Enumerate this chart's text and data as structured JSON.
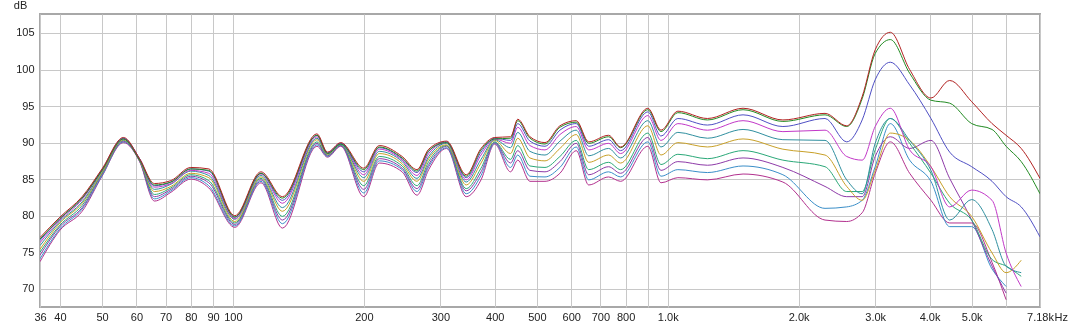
{
  "chart_data": {
    "type": "line",
    "xlabel": "Hz",
    "ylabel": "dB",
    "log": "x",
    "grid": true,
    "xlim": [
      36,
      7180
    ],
    "ylim": [
      67.5,
      107.6
    ],
    "xticks": [
      36,
      40,
      50,
      60,
      70,
      80,
      90,
      100,
      200,
      300,
      400,
      500,
      600,
      700,
      800,
      {
        "value": 900,
        "label": null
      },
      {
        "value": 1000,
        "label": "1.0k"
      },
      {
        "value": 2000,
        "label": "2.0k"
      },
      {
        "value": 3000,
        "label": "3.0k"
      },
      {
        "value": 4000,
        "label": "4.0k"
      },
      {
        "value": 5000,
        "label": "5.0k"
      },
      {
        "value": 6000,
        "label": null
      },
      {
        "value": 7180,
        "label": "7.18k"
      }
    ],
    "yticks": [
      70,
      75,
      80,
      85,
      90,
      95,
      100,
      105
    ],
    "x": [
      36,
      40,
      45,
      50,
      56,
      61,
      66,
      72,
      80,
      88,
      101,
      116,
      130,
      156,
      165,
      177,
      200,
      217,
      245,
      265,
      282,
      310,
      344,
      372,
      400,
      435,
      452,
      482,
      522,
      565,
      616,
      658,
      731,
      779,
      900,
      965,
      1055,
      1234,
      1490,
      1840,
      2300,
      2580,
      2800,
      3000,
      3250,
      3600,
      4030,
      4450,
      5000,
      5570,
      6000,
      6500,
      7180
    ],
    "series": [
      {
        "color": "#b22222",
        "values": [
          77.0,
          79.8,
          82.6,
          86.4,
          90.7,
          87.8,
          84.4,
          84.8,
          86.6,
          86.4,
          80.0,
          86.0,
          82.6,
          91.2,
          88.7,
          90.0,
          86.5,
          89.6,
          88.1,
          86.3,
          89.1,
          90.2,
          85.6,
          89.2,
          90.7,
          90.8,
          93.2,
          90.8,
          90.0,
          92.3,
          93.0,
          90.1,
          91.0,
          89.4,
          94.7,
          91.7,
          94.3,
          93.3,
          94.7,
          93.1,
          94.0,
          92.3,
          96.3,
          102.7,
          105.1,
          100.0,
          96.1,
          98.5,
          95.6,
          92.6,
          91.0,
          89.2,
          85.1
        ]
      },
      {
        "color": "#228b22",
        "values": [
          76.8,
          79.6,
          82.4,
          86.2,
          90.5,
          87.6,
          84.2,
          84.6,
          86.4,
          86.2,
          79.8,
          85.8,
          82.4,
          91.0,
          88.5,
          89.8,
          86.3,
          89.4,
          87.9,
          86.1,
          88.9,
          90.0,
          85.4,
          89.0,
          90.5,
          90.6,
          93.0,
          90.6,
          89.8,
          92.1,
          92.8,
          89.9,
          90.8,
          89.3,
          94.5,
          91.5,
          94.1,
          93.1,
          94.5,
          92.9,
          93.8,
          92.2,
          96.0,
          102.2,
          104.1,
          99.5,
          95.8,
          95.4,
          92.6,
          91.8,
          89.5,
          87.4,
          83.0
        ]
      },
      {
        "color": "#4f4fc4",
        "values": [
          76.6,
          79.6,
          82.4,
          86.3,
          90.6,
          87.8,
          84.1,
          84.6,
          86.4,
          86.1,
          79.8,
          85.8,
          82.1,
          91.0,
          88.6,
          89.9,
          86.0,
          89.3,
          87.8,
          85.9,
          88.8,
          90.1,
          85.2,
          88.7,
          90.6,
          90.3,
          92.6,
          90.2,
          89.5,
          91.7,
          92.6,
          89.5,
          90.4,
          88.9,
          94.2,
          90.9,
          93.3,
          92.4,
          93.8,
          92.2,
          93.3,
          90.1,
          93.1,
          98.6,
          101.0,
          97.9,
          93.3,
          88.7,
          86.7,
          84.7,
          82.6,
          81.2,
          77.1
        ]
      },
      {
        "color": "#c238c8",
        "values": [
          76.3,
          79.4,
          82.2,
          86.2,
          90.5,
          87.7,
          83.9,
          84.4,
          86.2,
          85.8,
          79.6,
          85.7,
          81.7,
          90.8,
          88.5,
          89.9,
          85.6,
          89.1,
          87.6,
          85.5,
          88.5,
          90.0,
          84.9,
          88.3,
          90.5,
          89.9,
          92.1,
          89.6,
          89.0,
          91.1,
          92.2,
          89.0,
          89.9,
          88.5,
          93.7,
          90.3,
          92.6,
          91.7,
          93.0,
          91.5,
          91.7,
          88.1,
          87.6,
          92.2,
          94.7,
          89.0,
          86.7,
          81.2,
          83.5,
          82.1,
          74.9,
          70.3,
          null
        ]
      },
      {
        "color": "#2f8f9f",
        "values": [
          75.9,
          79.2,
          81.9,
          86.1,
          90.5,
          87.7,
          83.6,
          84.3,
          86.1,
          85.5,
          79.5,
          85.5,
          81.1,
          90.6,
          88.5,
          89.8,
          85.2,
          88.8,
          87.4,
          85.1,
          88.1,
          89.9,
          84.6,
          87.7,
          90.4,
          89.3,
          91.4,
          88.8,
          88.3,
          90.2,
          91.7,
          88.2,
          89.2,
          87.9,
          93.0,
          89.4,
          91.4,
          90.6,
          91.8,
          90.4,
          90.3,
          84.9,
          83.0,
          89.9,
          93.3,
          90.3,
          86.2,
          79.4,
          82.2,
          78.1,
          73.1,
          72.2,
          null
        ]
      },
      {
        "color": "#c8a028",
        "values": [
          75.4,
          79.0,
          81.7,
          85.9,
          90.4,
          87.6,
          83.3,
          84.0,
          85.8,
          85.2,
          79.2,
          85.3,
          80.6,
          90.4,
          88.4,
          89.8,
          84.7,
          88.5,
          87.1,
          84.7,
          87.8,
          89.7,
          84.2,
          87.2,
          90.3,
          88.5,
          90.6,
          87.9,
          87.5,
          89.2,
          91.1,
          87.3,
          88.3,
          87.2,
          92.3,
          88.3,
          90.0,
          89.4,
          90.5,
          89.1,
          88.3,
          84.0,
          82.1,
          86.2,
          91.3,
          90.3,
          86.7,
          82.6,
          79.9,
          74.9,
          72.2,
          73.9,
          null
        ]
      },
      {
        "color": "#2aa878",
        "values": [
          75.0,
          78.7,
          81.4,
          85.8,
          90.3,
          87.6,
          82.9,
          83.8,
          85.6,
          84.8,
          79.0,
          85.1,
          79.9,
          90.1,
          88.3,
          89.7,
          84.1,
          88.1,
          86.8,
          84.1,
          87.4,
          89.6,
          83.7,
          86.5,
          90.1,
          87.7,
          89.6,
          86.8,
          86.6,
          88.1,
          90.3,
          86.3,
          87.3,
          86.3,
          91.3,
          87.0,
          88.4,
          87.8,
          88.9,
          87.6,
          86.7,
          83.3,
          83.3,
          89.0,
          93.3,
          89.9,
          85.8,
          81.7,
          79.4,
          74.0,
          73.1,
          71.7,
          null
        ]
      },
      {
        "color": "#8e3aa8",
        "values": [
          74.6,
          78.5,
          81.1,
          85.7,
          90.2,
          87.5,
          82.6,
          83.6,
          85.4,
          84.5,
          78.8,
          84.9,
          79.4,
          89.9,
          88.2,
          89.6,
          83.6,
          87.8,
          86.5,
          83.7,
          87.0,
          89.5,
          83.4,
          86.0,
          90.0,
          87.2,
          88.9,
          86.2,
          86.0,
          87.4,
          89.9,
          85.6,
          86.7,
          85.8,
          90.7,
          86.2,
          87.4,
          86.9,
          87.9,
          86.6,
          84.0,
          82.6,
          82.6,
          88.1,
          90.8,
          89.2,
          90.3,
          85.1,
          79.4,
          73.1,
          69.4,
          null,
          null
        ]
      },
      {
        "color": "#3a8ec8",
        "values": [
          74.1,
          78.2,
          80.9,
          85.5,
          90.1,
          87.5,
          82.3,
          83.4,
          85.2,
          84.1,
          78.6,
          84.7,
          78.9,
          89.7,
          88.1,
          89.6,
          83.1,
          87.5,
          86.3,
          83.3,
          86.7,
          89.3,
          83.0,
          85.5,
          89.9,
          86.6,
          88.3,
          85.4,
          85.3,
          86.6,
          89.4,
          84.9,
          86.0,
          85.3,
          90.1,
          85.4,
          86.3,
          85.9,
          86.8,
          85.6,
          81.0,
          81.2,
          82.1,
          86.7,
          92.6,
          87.6,
          84.7,
          78.5,
          78.5,
          72.7,
          70.3,
          null,
          null
        ]
      },
      {
        "color": "#b2308e",
        "values": [
          73.7,
          78.0,
          80.6,
          85.4,
          90.0,
          87.4,
          82.0,
          83.2,
          85.0,
          83.8,
          78.4,
          84.5,
          78.3,
          89.5,
          88.0,
          89.5,
          82.6,
          87.2,
          86.0,
          82.8,
          86.3,
          89.2,
          82.6,
          84.9,
          89.8,
          86.0,
          87.6,
          84.7,
          84.7,
          85.8,
          88.9,
          84.2,
          85.3,
          84.7,
          89.5,
          84.5,
          85.2,
          84.9,
          85.7,
          84.6,
          79.4,
          79.2,
          80.4,
          85.8,
          90.1,
          85.8,
          82.1,
          79.0,
          79.0,
          73.6,
          68.5,
          null,
          null
        ]
      }
    ]
  }
}
